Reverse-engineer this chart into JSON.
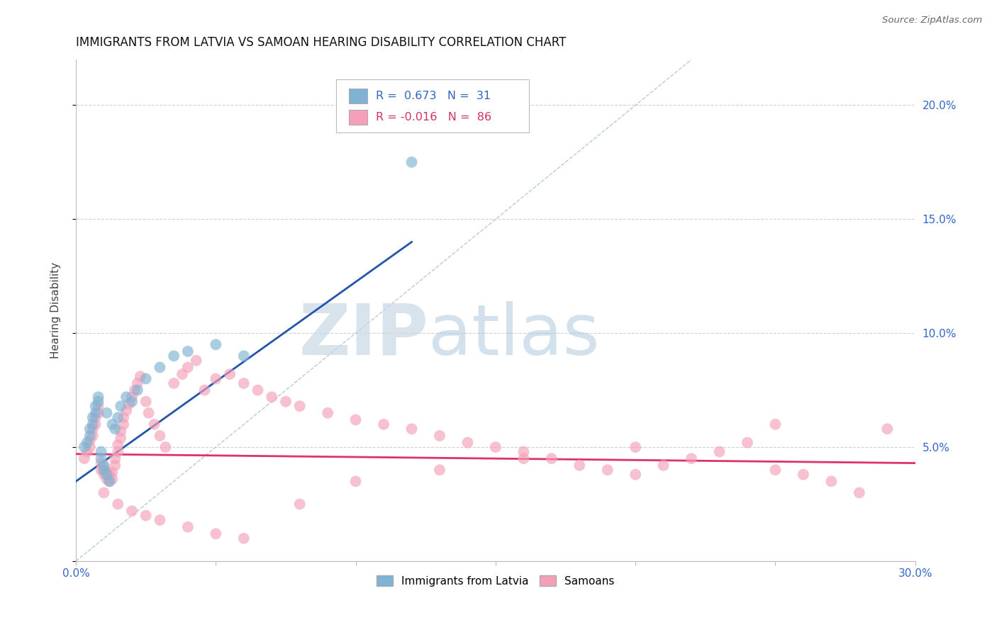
{
  "title": "IMMIGRANTS FROM LATVIA VS SAMOAN HEARING DISABILITY CORRELATION CHART",
  "source": "Source: ZipAtlas.com",
  "ylabel": "Hearing Disability",
  "xlim": [
    0.0,
    0.3
  ],
  "ylim": [
    0.0,
    0.22
  ],
  "xticks": [
    0.0,
    0.05,
    0.1,
    0.15,
    0.2,
    0.25,
    0.3
  ],
  "xticklabels": [
    "0.0%",
    "",
    "",
    "",
    "",
    "",
    "30.0%"
  ],
  "yticks": [
    0.0,
    0.05,
    0.1,
    0.15,
    0.2
  ],
  "yticklabels": [
    "",
    "5.0%",
    "10.0%",
    "15.0%",
    "20.0%"
  ],
  "legend_r_blue": "0.673",
  "legend_n_blue": "31",
  "legend_r_pink": "-0.016",
  "legend_n_pink": "86",
  "legend_label_blue": "Immigrants from Latvia",
  "legend_label_pink": "Samoans",
  "blue_color": "#7fb3d3",
  "pink_color": "#f5a0b8",
  "blue_line_color": "#2255aa",
  "pink_line_color": "#dd3366",
  "diag_line_color": "#b0c4d8",
  "watermark_color": "#d5e3ef",
  "grid_color": "#cccccc",
  "blue_scatter_x": [
    0.003,
    0.004,
    0.005,
    0.005,
    0.006,
    0.006,
    0.007,
    0.007,
    0.008,
    0.008,
    0.009,
    0.009,
    0.01,
    0.01,
    0.011,
    0.011,
    0.012,
    0.013,
    0.014,
    0.015,
    0.016,
    0.018,
    0.02,
    0.022,
    0.025,
    0.03,
    0.035,
    0.04,
    0.05,
    0.06,
    0.12
  ],
  "blue_scatter_y": [
    0.05,
    0.052,
    0.055,
    0.058,
    0.06,
    0.063,
    0.065,
    0.068,
    0.07,
    0.072,
    0.045,
    0.048,
    0.04,
    0.042,
    0.038,
    0.065,
    0.035,
    0.06,
    0.058,
    0.063,
    0.068,
    0.072,
    0.07,
    0.075,
    0.08,
    0.085,
    0.09,
    0.092,
    0.095,
    0.09,
    0.175
  ],
  "pink_scatter_x": [
    0.003,
    0.004,
    0.005,
    0.005,
    0.006,
    0.006,
    0.007,
    0.007,
    0.008,
    0.008,
    0.009,
    0.009,
    0.01,
    0.01,
    0.011,
    0.011,
    0.012,
    0.012,
    0.013,
    0.013,
    0.014,
    0.014,
    0.015,
    0.015,
    0.016,
    0.016,
    0.017,
    0.017,
    0.018,
    0.019,
    0.02,
    0.021,
    0.022,
    0.023,
    0.025,
    0.026,
    0.028,
    0.03,
    0.032,
    0.035,
    0.038,
    0.04,
    0.043,
    0.046,
    0.05,
    0.055,
    0.06,
    0.065,
    0.07,
    0.075,
    0.08,
    0.09,
    0.1,
    0.11,
    0.12,
    0.13,
    0.14,
    0.15,
    0.16,
    0.17,
    0.18,
    0.19,
    0.2,
    0.21,
    0.22,
    0.23,
    0.24,
    0.25,
    0.26,
    0.27,
    0.28,
    0.29,
    0.01,
    0.015,
    0.02,
    0.025,
    0.03,
    0.04,
    0.05,
    0.06,
    0.08,
    0.1,
    0.13,
    0.16,
    0.2,
    0.25
  ],
  "pink_scatter_y": [
    0.045,
    0.048,
    0.05,
    0.053,
    0.055,
    0.058,
    0.06,
    0.063,
    0.065,
    0.068,
    0.04,
    0.043,
    0.038,
    0.041,
    0.036,
    0.039,
    0.035,
    0.038,
    0.036,
    0.039,
    0.042,
    0.045,
    0.048,
    0.051,
    0.054,
    0.057,
    0.06,
    0.063,
    0.066,
    0.069,
    0.072,
    0.075,
    0.078,
    0.081,
    0.07,
    0.065,
    0.06,
    0.055,
    0.05,
    0.078,
    0.082,
    0.085,
    0.088,
    0.075,
    0.08,
    0.082,
    0.078,
    0.075,
    0.072,
    0.07,
    0.068,
    0.065,
    0.062,
    0.06,
    0.058,
    0.055,
    0.052,
    0.05,
    0.048,
    0.045,
    0.042,
    0.04,
    0.038,
    0.042,
    0.045,
    0.048,
    0.052,
    0.04,
    0.038,
    0.035,
    0.03,
    0.058,
    0.03,
    0.025,
    0.022,
    0.02,
    0.018,
    0.015,
    0.012,
    0.01,
    0.025,
    0.035,
    0.04,
    0.045,
    0.05,
    0.06
  ],
  "blue_line_x": [
    0.0,
    0.12
  ],
  "blue_line_y": [
    0.035,
    0.14
  ],
  "pink_line_x": [
    0.0,
    0.3
  ],
  "pink_line_y": [
    0.047,
    0.043
  ],
  "title_fontsize": 12,
  "axis_label_fontsize": 11,
  "tick_fontsize": 11
}
